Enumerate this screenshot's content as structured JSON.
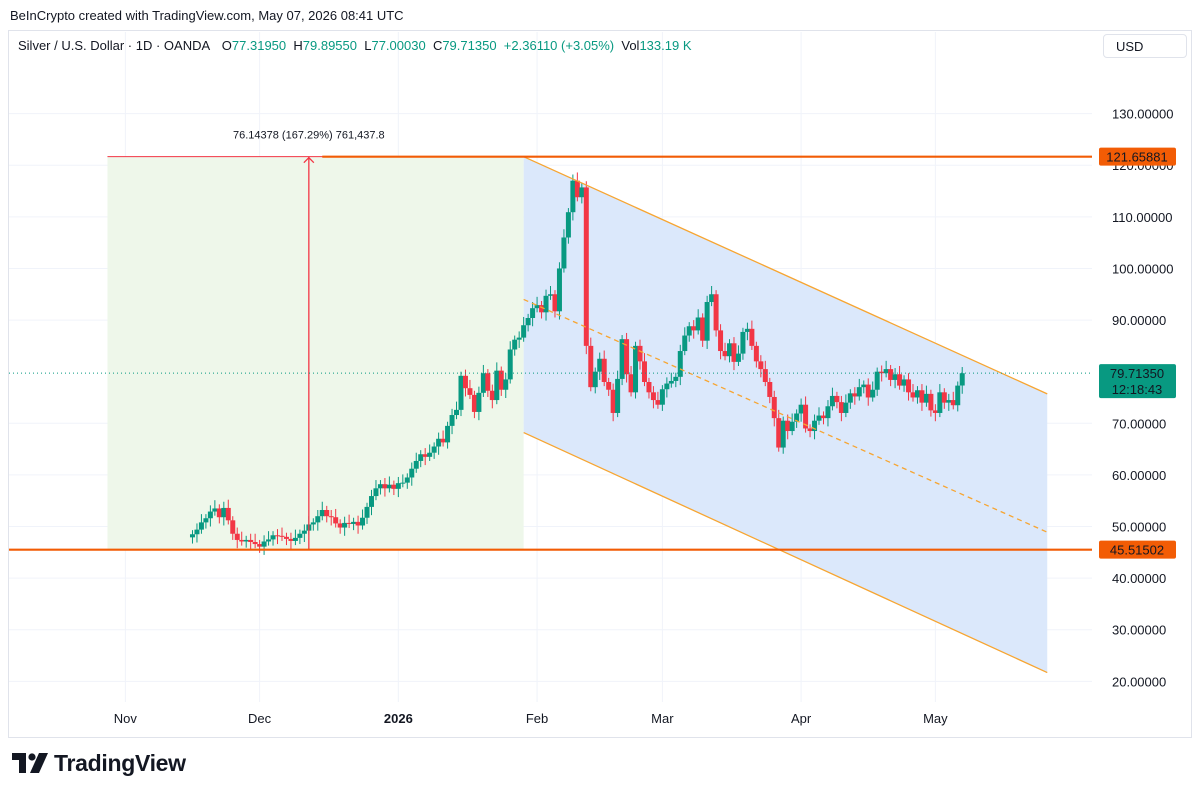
{
  "header": {
    "credit": "BeInCrypto created with TradingView.com, May 07, 2026 08:41 UTC"
  },
  "legend": {
    "symbol": "Silver / U.S. Dollar · 1D · OANDA",
    "open_label": "O",
    "open": "77.31950",
    "high_label": "H",
    "high": "79.89550",
    "low_label": "L",
    "low": "77.00030",
    "close_label": "C",
    "close": "79.71350",
    "change": "+2.36110 (+3.05%)",
    "vol_label": "Vol",
    "vol": "133.19 K"
  },
  "currency": "USD",
  "footer": {
    "brand": "TradingView"
  },
  "colors": {
    "up": "#089981",
    "down": "#f23645",
    "level": "#f25c05",
    "channel": "#f7a531",
    "channel_fill": "#dbe8fb",
    "range_fill": "#eef7ea",
    "measure": "#f23645"
  },
  "chart_data": {
    "type": "candlestick",
    "title": "Silver / U.S. Dollar · 1D · OANDA",
    "ylim": [
      16,
      140
    ],
    "y_ticks": [
      {
        "value": 130,
        "label": "130.00000"
      },
      {
        "value": 120,
        "label": "120.00000"
      },
      {
        "value": 110,
        "label": "110.00000"
      },
      {
        "value": 100,
        "label": "100.00000"
      },
      {
        "value": 90,
        "label": "90.00000"
      },
      {
        "value": 70,
        "label": "70.00000"
      },
      {
        "value": 60,
        "label": "60.00000"
      },
      {
        "value": 50,
        "label": "50.00000"
      },
      {
        "value": 40,
        "label": "40.00000"
      },
      {
        "value": 30,
        "label": "30.00000"
      },
      {
        "value": 20,
        "label": "20.00000"
      }
    ],
    "x_ticks": [
      {
        "date": "2025-11-01",
        "label": "Nov",
        "bold": false
      },
      {
        "date": "2025-12-01",
        "label": "Dec",
        "bold": false
      },
      {
        "date": "2026-01-01",
        "label": "2026",
        "bold": true
      },
      {
        "date": "2026-02-01",
        "label": "Feb",
        "bold": false
      },
      {
        "date": "2026-03-01",
        "label": "Mar",
        "bold": false
      },
      {
        "date": "2026-04-01",
        "label": "Apr",
        "bold": false
      },
      {
        "date": "2026-05-01",
        "label": "May",
        "bold": false
      }
    ],
    "x_range": [
      "2025-10-06",
      "2026-06-05"
    ],
    "last_bar_date": "2026-05-07",
    "closes": [
      48.5,
      49.4,
      50.8,
      51.6,
      52.9,
      53.5,
      51.8,
      53.6,
      51.2,
      48.6,
      47.4,
      47.1,
      47.4,
      47.0,
      46.6,
      46.1,
      47.1,
      47.5,
      48.3,
      48.2,
      48.0,
      47.6,
      47.2,
      47.8,
      48.6,
      49.2,
      50.4,
      50.8,
      52.0,
      53.2,
      52.0,
      51.8,
      50.6,
      49.8,
      50.7,
      50.5,
      50.9,
      50.2,
      51.7,
      53.8,
      55.9,
      57.4,
      58.2,
      57.4,
      58.1,
      57.3,
      58.4,
      58.5,
      59.5,
      61.2,
      62.7,
      64.0,
      63.5,
      64.3,
      65.5,
      67.0,
      66.3,
      69.5,
      71.6,
      72.6,
      79.2,
      76.8,
      75.5,
      72.2,
      75.9,
      79.7,
      76.3,
      74.5,
      80.2,
      76.5,
      78.5,
      84.3,
      86.2,
      86.6,
      89.0,
      90.4,
      92.3,
      92.9,
      91.5,
      94.7,
      95.0,
      91.7,
      100.0,
      106.0,
      110.9,
      117.0,
      113.8,
      115.7,
      85.0,
      77.0,
      80.0,
      82.5,
      78.0,
      76.5,
      72.0,
      78.6,
      86.3,
      79.5,
      76.0,
      85.0,
      82.0,
      78.0,
      76.0,
      74.5,
      73.6,
      76.6,
      77.7,
      78.2,
      79.0,
      84.0,
      87.0,
      88.8,
      88.0,
      90.5,
      86.0,
      93.5,
      95.0,
      88.0,
      84.0,
      83.0,
      85.5,
      81.9,
      83.5,
      87.7,
      88.3,
      85.0,
      82.0,
      80.5,
      78.0,
      75.1,
      71.0,
      65.3,
      70.5,
      68.5,
      70.3,
      71.9,
      73.6,
      69.0,
      68.5,
      70.5,
      71.5,
      71.0,
      73.3,
      75.3,
      74.1,
      72.0,
      74.0,
      75.8,
      75.2,
      77.0,
      77.5,
      75.0,
      76.5,
      80.0,
      79.7,
      80.5,
      78.4,
      79.5,
      77.3,
      78.5,
      76.0,
      75.0,
      76.4,
      74.0,
      75.7,
      72.5,
      72.0,
      76.0,
      74.0,
      74.5,
      73.5,
      77.3,
      79.7
    ],
    "range_measure": {
      "from": "2025-10-28",
      "to": "2026-01-29",
      "low": 45.51502,
      "high": 121.65881,
      "measure_date": "2025-12-12",
      "label": "76.14378 (167.29%) 761,437.8"
    },
    "levels": [
      {
        "value": 121.65881,
        "label": "121.65881",
        "from": "2025-12-15"
      },
      {
        "value": 45.51502,
        "label": "45.51502",
        "from": "2025-10-06"
      }
    ],
    "last_price": {
      "value": 79.7135,
      "label": "79.71350",
      "countdown": "12:18:43"
    },
    "channel": {
      "start_date": "2026-01-29",
      "end_date": "2026-05-26",
      "upper": [
        121.65881,
        75.7
      ],
      "middle": [
        94.0,
        48.9
      ],
      "lower": [
        68.2,
        21.7
      ]
    }
  }
}
